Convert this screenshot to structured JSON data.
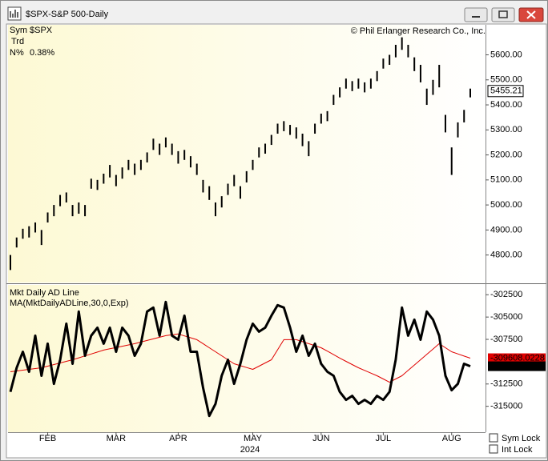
{
  "window": {
    "title": "$SPX-S&P 500-Daily"
  },
  "controls": [
    "Sym Lock",
    "Int Lock"
  ],
  "chart_data": [
    {
      "type": "range_bar",
      "copyright": "© Phil Erlanger Research Co., Inc.",
      "fields": [
        {
          "label": "Sym",
          "value": "$SPX"
        },
        {
          "label": "Trd"
        },
        {
          "label": "N%",
          "value": "0.38%"
        }
      ],
      "color": "#000000",
      "last_value": 5455.21,
      "low": [
        4740,
        4830,
        4865,
        4870,
        4890,
        4840,
        4930,
        4955,
        4995,
        5010,
        4955,
        4965,
        4955,
        5065,
        5060,
        5085,
        5110,
        5075,
        5105,
        5140,
        5120,
        5140,
        5170,
        5220,
        5200,
        5230,
        5200,
        5165,
        5180,
        5150,
        5120,
        5050,
        5020,
        4955,
        4990,
        5040,
        5075,
        5025,
        5090,
        5140,
        5190,
        5205,
        5240,
        5285,
        5295,
        5280,
        5265,
        5235,
        5195,
        5285,
        5325,
        5335,
        5400,
        5430,
        5465,
        5455,
        5465,
        5450,
        5465,
        5495,
        5545,
        5560,
        5590,
        5620,
        5590,
        5535,
        5490,
        5400,
        5440,
        5470,
        5290,
        5120,
        5270,
        5330,
        5430
      ],
      "high": [
        4800,
        4870,
        4905,
        4915,
        4930,
        4900,
        4970,
        5000,
        5040,
        5050,
        5000,
        5010,
        5000,
        5105,
        5100,
        5125,
        5160,
        5120,
        5150,
        5180,
        5165,
        5180,
        5210,
        5265,
        5245,
        5270,
        5245,
        5215,
        5220,
        5195,
        5165,
        5100,
        5075,
        5010,
        5035,
        5085,
        5120,
        5075,
        5135,
        5180,
        5230,
        5245,
        5280,
        5325,
        5335,
        5320,
        5310,
        5285,
        5255,
        5325,
        5365,
        5375,
        5440,
        5470,
        5505,
        5495,
        5505,
        5490,
        5505,
        5535,
        5585,
        5600,
        5640,
        5670,
        5640,
        5590,
        5560,
        5465,
        5500,
        5560,
        5360,
        5230,
        5330,
        5380,
        5465
      ],
      "ylim": [
        4690,
        5720
      ],
      "yticks": [
        {
          "value": 4800,
          "label": "4800.00"
        },
        {
          "value": 4900,
          "label": "4900.00"
        },
        {
          "value": 5000,
          "label": "5000.00"
        },
        {
          "value": 5100,
          "label": "5100.00"
        },
        {
          "value": 5200,
          "label": "5200.00"
        },
        {
          "value": 5300,
          "label": "5300.00"
        },
        {
          "value": 5400,
          "label": "5400.00"
        },
        {
          "value": 5500,
          "label": "5500.00"
        },
        {
          "value": 5600,
          "label": "5600.00"
        }
      ]
    },
    {
      "type": "line",
      "year_label": "2024",
      "categories": [
        null,
        null,
        null,
        null,
        null,
        null,
        "FEB",
        null,
        null,
        null,
        null,
        null,
        null,
        null,
        null,
        null,
        null,
        "MAR",
        null,
        null,
        null,
        null,
        null,
        null,
        null,
        null,
        null,
        "APR",
        null,
        null,
        null,
        null,
        null,
        null,
        null,
        null,
        null,
        null,
        null,
        "MAY",
        null,
        null,
        null,
        null,
        null,
        null,
        null,
        null,
        null,
        null,
        "JUN",
        null,
        null,
        null,
        null,
        null,
        null,
        null,
        null,
        null,
        "JUL",
        null,
        null,
        null,
        null,
        null,
        null,
        null,
        null,
        null,
        null,
        "AUG",
        null,
        null,
        null
      ],
      "series": [
        {
          "name": "Mkt Daily AD Line",
          "color": "#000000",
          "last": -310509,
          "values": [
            -313380,
            -310680,
            -308885,
            -311130,
            -307085,
            -311580,
            -307985,
            -312480,
            -309785,
            -305740,
            -310235,
            -304390,
            -309335,
            -307085,
            -306185,
            -307985,
            -306185,
            -308885,
            -306185,
            -307085,
            -309335,
            -307985,
            -304390,
            -303940,
            -307085,
            -303310,
            -307085,
            -307535,
            -304840,
            -308885,
            -308885,
            -312930,
            -316080,
            -314730,
            -311580,
            -309785,
            -312480,
            -310235,
            -307535,
            -305740,
            -306635,
            -306185,
            -304840,
            -303670,
            -303940,
            -306185,
            -308885,
            -307085,
            -309335,
            -307985,
            -310235,
            -311130,
            -311580,
            -313380,
            -314280,
            -313830,
            -314730,
            -314280,
            -314730,
            -313830,
            -314280,
            -313380,
            -309785,
            -303940,
            -307085,
            -305290,
            -307535,
            -304390,
            -305290,
            -307085,
            -311580,
            -313200,
            -312480,
            -310235,
            -310509
          ]
        },
        {
          "name": "MA(MktDailyADLine,30,0,Exp)",
          "color": "#e00000",
          "last": -309608.0228,
          "values": [
            -311130,
            -311040,
            -310950,
            -310860,
            -310770,
            -310680,
            -310500,
            -310320,
            -310140,
            -309960,
            -309785,
            -309570,
            -309350,
            -309135,
            -308920,
            -308700,
            -308560,
            -308415,
            -308270,
            -308130,
            -307985,
            -307805,
            -307625,
            -307445,
            -307265,
            -307085,
            -306990,
            -306900,
            -307110,
            -307320,
            -307535,
            -307985,
            -308435,
            -308885,
            -309335,
            -309785,
            -310235,
            -310445,
            -310650,
            -310860,
            -310500,
            -310140,
            -309785,
            -308660,
            -307535,
            -307535,
            -307535,
            -307760,
            -307985,
            -308210,
            -308435,
            -308820,
            -309210,
            -309600,
            -309960,
            -310320,
            -310680,
            -310980,
            -311280,
            -311580,
            -311940,
            -312300,
            -311940,
            -311580,
            -310980,
            -310380,
            -309785,
            -309185,
            -308585,
            -307985,
            -308435,
            -308885,
            -309130,
            -309370,
            -309608
          ]
        }
      ],
      "ylim": [
        -317900,
        -301400
      ],
      "yticks": [
        -315000,
        -312500,
        -307500,
        -305000,
        -302500
      ]
    }
  ]
}
